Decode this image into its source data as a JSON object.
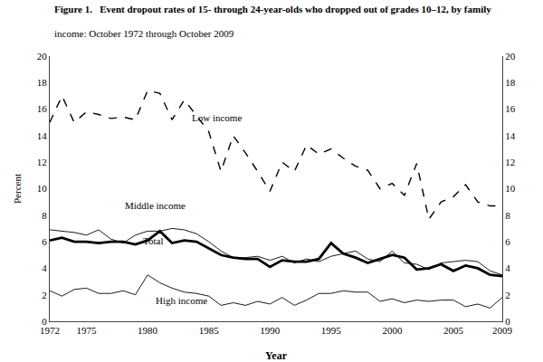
{
  "chart_data": {
    "type": "line",
    "title": "Figure 1.   Event dropout rates of 15- through 24-year-olds who dropped out of grades 10–12, by family",
    "subtitle": "                income: October 1972 through October 2009",
    "x_label": "Year",
    "y_label": "Percent",
    "x": [
      1972,
      1973,
      1974,
      1975,
      1976,
      1977,
      1978,
      1979,
      1980,
      1981,
      1982,
      1983,
      1984,
      1985,
      1986,
      1987,
      1988,
      1989,
      1990,
      1991,
      1992,
      1993,
      1994,
      1995,
      1996,
      1997,
      1998,
      1999,
      2000,
      2001,
      2002,
      2003,
      2004,
      2005,
      2006,
      2007,
      2008,
      2009
    ],
    "series": [
      {
        "name": "Low income",
        "color": "#000000",
        "line_style": "dashed",
        "values": [
          15.0,
          17.0,
          15.0,
          15.8,
          15.6,
          15.3,
          15.4,
          15.2,
          17.4,
          17.2,
          15.2,
          16.7,
          15.5,
          14.3,
          11.3,
          14.0,
          12.7,
          11.3,
          9.8,
          12.0,
          11.3,
          13.3,
          12.6,
          13.0,
          12.3,
          11.7,
          11.4,
          10.0,
          10.4,
          9.5,
          11.9,
          7.7,
          9.0,
          9.4,
          10.3,
          9.0,
          8.7,
          8.7
        ]
      },
      {
        "name": "Middle income",
        "color": "#000000",
        "line_style": "solid",
        "values": [
          6.9,
          6.8,
          6.7,
          6.5,
          6.9,
          6.2,
          5.9,
          6.5,
          6.8,
          6.8,
          7.0,
          6.9,
          6.6,
          6.0,
          5.3,
          4.8,
          4.8,
          4.9,
          4.6,
          4.9,
          4.4,
          4.7,
          4.5,
          4.9,
          5.1,
          5.3,
          4.7,
          4.5,
          5.3,
          4.4,
          4.3,
          3.9,
          4.4,
          4.5,
          4.6,
          4.5,
          3.8,
          3.5
        ]
      },
      {
        "name": "Total",
        "color": "#000000",
        "line_style": "solid",
        "values": [
          6.1,
          6.3,
          6.0,
          6.0,
          5.9,
          6.0,
          6.0,
          5.8,
          6.1,
          6.8,
          5.9,
          6.1,
          6.0,
          5.5,
          5.0,
          4.8,
          4.7,
          4.7,
          4.1,
          4.6,
          4.5,
          4.5,
          4.7,
          5.9,
          5.1,
          4.8,
          4.4,
          4.7,
          5.0,
          4.8,
          3.9,
          4.0,
          4.3,
          3.8,
          4.2,
          4.0,
          3.5,
          3.4
        ]
      },
      {
        "name": "High income",
        "color": "#000000",
        "line_style": "solid",
        "values": [
          2.3,
          1.9,
          2.4,
          2.5,
          2.1,
          2.1,
          2.3,
          2.0,
          3.5,
          2.9,
          2.5,
          2.2,
          2.1,
          1.9,
          1.2,
          1.4,
          1.2,
          1.5,
          1.3,
          1.8,
          1.2,
          1.6,
          2.1,
          2.1,
          2.3,
          2.2,
          2.2,
          1.5,
          1.7,
          1.4,
          1.6,
          1.5,
          1.6,
          1.6,
          1.1,
          1.3,
          1.0,
          1.8
        ]
      }
    ],
    "annotations": [
      {
        "text": "Low income",
        "x": 1983.5,
        "y": 14.8
      },
      {
        "text": "Middle income",
        "x": 1978.0,
        "y": 8.2
      },
      {
        "text": "Total",
        "x": 1979.5,
        "y": 5.5
      },
      {
        "text": "High income",
        "x": 1980.5,
        "y": 1.0
      }
    ],
    "xlim": [
      1972,
      2009
    ],
    "xticks": [
      1972,
      1975,
      1980,
      1985,
      1990,
      1995,
      2000,
      2005,
      2009
    ],
    "ylim": [
      0,
      20
    ],
    "yticks": [
      0,
      2,
      4,
      6,
      8,
      10,
      12,
      14,
      16,
      18,
      20
    ],
    "y2lim": [
      0,
      20
    ],
    "y2ticks": [
      0,
      2,
      4,
      6,
      8,
      10,
      12,
      14,
      16,
      18,
      20
    ],
    "grid": false
  }
}
